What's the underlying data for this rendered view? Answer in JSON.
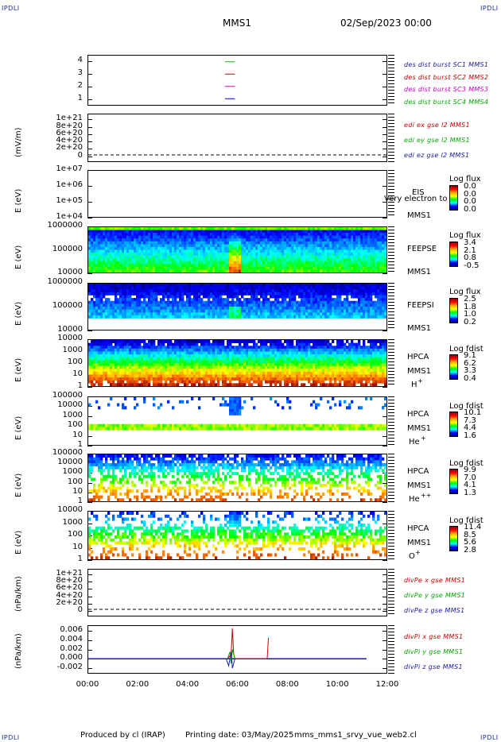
{
  "corners": {
    "label": "IPDLI"
  },
  "header": {
    "spacecraft": "MMS1",
    "datetime": "02/Sep/2023 00:00"
  },
  "footer": {
    "produced": "Produced by cl (IRAP)",
    "printing": "Printing date: 03/May/2025",
    "script": "mms_mms1_srvy_vue_web2.cl"
  },
  "colors": {
    "mms1": "#0000cc",
    "mms2": "#cc0000",
    "mms3": "#cc00cc",
    "mms4": "#00bb00"
  },
  "chart_data": [
    {
      "type": "line",
      "panel": "burst",
      "ylim": [
        0.5,
        4.5
      ],
      "yticks": [
        "4",
        "3",
        "2",
        "1"
      ],
      "legend": [
        "des dist burst SC1 MMS1",
        "des dist burst SC2 MMS2",
        "des dist burst SC3 MMS3",
        "des dist burst SC4 MMS4"
      ],
      "series": [
        {
          "name": "des dist burst SC1 MMS1",
          "x": [
            5.5,
            5.9
          ],
          "values": [
            1,
            1
          ]
        },
        {
          "name": "des dist burst SC2 MMS2",
          "x": [
            5.5,
            5.9
          ],
          "values": [
            3,
            3
          ]
        },
        {
          "name": "des dist burst SC3 MMS3",
          "x": [
            5.5,
            5.9
          ],
          "values": [
            2,
            2
          ]
        },
        {
          "name": "des dist burst SC4 MMS4",
          "x": [
            5.5,
            5.9
          ],
          "values": [
            4,
            4
          ]
        }
      ]
    },
    {
      "type": "line",
      "panel": "edi",
      "ylabel": "(mV/m)",
      "yticks": [
        "1e+21",
        "8e+20",
        "6e+20",
        "4e+20",
        "2e+20",
        "0"
      ],
      "legend": [
        "edi ex gse l2 MMS1",
        "edi ey gse l2 MMS1",
        "edi ez gse l2 MMS1"
      ]
    },
    {
      "type": "heatmap",
      "panel": "eis",
      "ylabel": "E (eV)",
      "yticks": [
        "1e+07",
        "1e+06",
        "1e+05",
        "1e+04"
      ],
      "instrument": "EIS",
      "spacecraft": "MMS1",
      "overlay": "Very electron to",
      "cb_title": "Log flux",
      "cb_values": [
        "0.0",
        "0.0",
        "0.0",
        "0.0"
      ]
    },
    {
      "type": "heatmap",
      "panel": "feepse",
      "ylabel": "E (eV)",
      "yticks": [
        "1000000",
        "100000",
        "10000"
      ],
      "instrument": "FEEPSE",
      "spacecraft": "MMS1",
      "cb_title": "Log flux",
      "cb_values": [
        "3.4",
        "2.1",
        "0.8",
        "-0.5"
      ]
    },
    {
      "type": "heatmap",
      "panel": "feepsi",
      "ylabel": "E (eV)",
      "yticks": [
        "1000000",
        "100000",
        "10000"
      ],
      "instrument": "FEEPSI",
      "spacecraft": "MMS1",
      "cb_title": "Log flux",
      "cb_values": [
        "2.5",
        "1.8",
        "1.0",
        "0.2"
      ]
    },
    {
      "type": "heatmap",
      "panel": "hpca_h",
      "ylabel": "E (eV)",
      "yticks": [
        "10000",
        "1000",
        "100",
        "10",
        "1"
      ],
      "instrument": "HPCA",
      "spacecraft": "MMS1",
      "species": "H",
      "charge": "+",
      "cb_title": "Log fdist",
      "cb_values": [
        "9.1",
        "6.2",
        "3.3",
        "0.4"
      ]
    },
    {
      "type": "heatmap",
      "panel": "hpca_he",
      "ylabel": "E (eV)",
      "yticks": [
        "100000",
        "10000",
        "1000",
        "100",
        "10",
        "1"
      ],
      "instrument": "HPCA",
      "spacecraft": "MMS1",
      "species": "He",
      "charge": "+",
      "cb_title": "Log fdist",
      "cb_values": [
        "10.1",
        "7.3",
        "4.4",
        "1.6"
      ]
    },
    {
      "type": "heatmap",
      "panel": "hpca_hepp",
      "ylabel": "E (eV)",
      "yticks": [
        "100000",
        "10000",
        "1000",
        "100",
        "10",
        "1"
      ],
      "instrument": "HPCA",
      "spacecraft": "MMS1",
      "species": "He",
      "charge": "++",
      "cb_title": "Log fdist",
      "cb_values": [
        "9.9",
        "7.0",
        "4.1",
        "1.3"
      ]
    },
    {
      "type": "heatmap",
      "panel": "hpca_o",
      "ylabel": "E (eV)",
      "yticks": [
        "10000",
        "1000",
        "100",
        "10",
        "1"
      ],
      "instrument": "HPCA",
      "spacecraft": "MMS1",
      "species": "O",
      "charge": "+",
      "cb_title": "Log fdist",
      "cb_values": [
        "11.4",
        "8.5",
        "5.6",
        "2.8"
      ]
    },
    {
      "type": "line",
      "panel": "divpe",
      "ylabel": "(nPa/km)",
      "yticks": [
        "1e+21",
        "8e+20",
        "6e+20",
        "4e+20",
        "2e+20",
        "0"
      ],
      "legend": [
        "divPe x gse MMS1",
        "divPe y gse MMS1",
        "divPe z gse MMS1"
      ]
    },
    {
      "type": "line",
      "panel": "divpi",
      "ylabel": "(nPa/km)",
      "ylim": [
        -0.003,
        0.007
      ],
      "yticks": [
        "0.006",
        "0.004",
        "0.002",
        "0.000",
        "-0.002"
      ],
      "legend": [
        "divPi x gse MMS1",
        "divPi y gse MMS1",
        "divPi z gse MMS1"
      ],
      "series": [
        {
          "name": "divPi x gse MMS1",
          "x": [
            5.6,
            5.75,
            5.8,
            5.85,
            5.9,
            7.2,
            7.25
          ],
          "values": [
            0.0,
            0.001,
            0.0065,
            0.001,
            0.0,
            0.0,
            0.0045
          ]
        },
        {
          "name": "divPi y gse MMS1",
          "x": [
            5.6,
            5.7,
            5.75,
            5.8,
            5.9
          ],
          "values": [
            0.0,
            0.0015,
            -0.001,
            0.002,
            0.0
          ]
        },
        {
          "name": "divPi z gse MMS1",
          "x": [
            5.55,
            5.65,
            5.75,
            5.8,
            5.9
          ],
          "values": [
            0.0,
            -0.0015,
            0.0015,
            -0.002,
            0.0
          ]
        }
      ]
    }
  ],
  "xaxis": {
    "ticks": [
      "00:00",
      "02:00",
      "04:00",
      "06:00",
      "08:00",
      "10:00",
      "12:00"
    ],
    "xlim": [
      0,
      12
    ]
  }
}
